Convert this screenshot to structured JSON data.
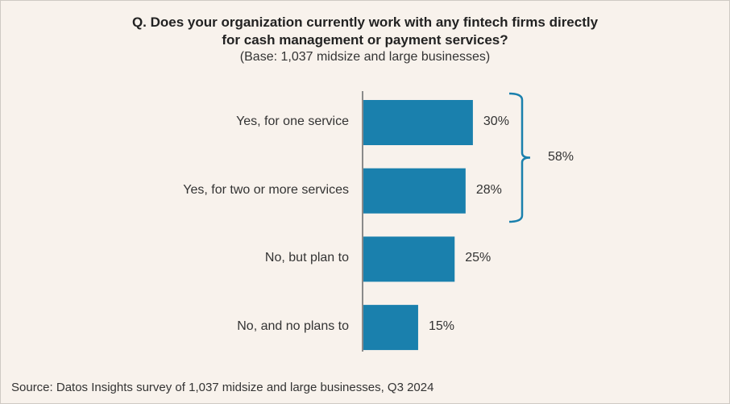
{
  "chart_data": {
    "type": "bar",
    "orientation": "horizontal",
    "title_line1": "Q. Does your organization currently work with any fintech firms directly",
    "title_line2": "for cash management or payment services?",
    "subtitle": "(Base: 1,037 midsize and large businesses)",
    "categories": [
      "Yes, for one service",
      "Yes, for two or more services",
      "No, but plan to",
      "No, and no plans to"
    ],
    "values": [
      30,
      28,
      25,
      15
    ],
    "data_labels": [
      "30%",
      "28%",
      "25%",
      "15%"
    ],
    "bracket": {
      "covers": [
        "Yes, for one service",
        "Yes, for two or more services"
      ],
      "label": "58%"
    },
    "source": "Source: Datos Insights survey of 1,037 midsize and large businesses, Q3 2024",
    "bar_color": "#1a80ad",
    "xlim": [
      0,
      100
    ],
    "grid": false
  }
}
